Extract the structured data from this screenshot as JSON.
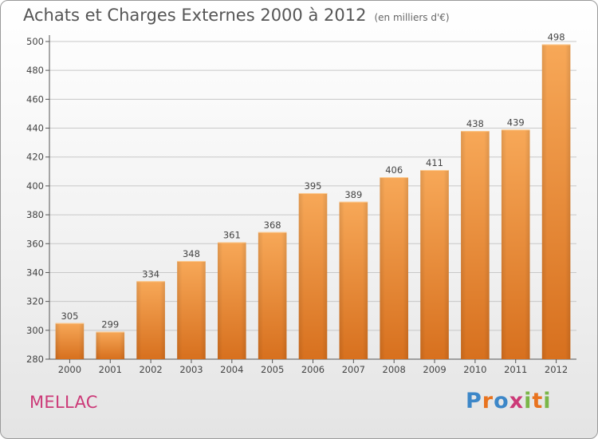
{
  "header": {
    "title": "Achats et Charges Externes 2000 à 2012",
    "unit": "(en milliers d'€)"
  },
  "footer": {
    "commune": "MELLAC",
    "brand": [
      "P",
      "r",
      "o",
      "x",
      "i",
      "t",
      "i"
    ]
  },
  "colors": {
    "bar_top": "#f7a858",
    "bar_bottom": "#d7701e",
    "brand_letters": [
      "#3d87c8",
      "#e8731f",
      "#3d87c8",
      "#cc3a78",
      "#7ab648",
      "#e8731f",
      "#7ab648"
    ]
  },
  "chart_data": {
    "type": "bar",
    "title": "Achats et Charges Externes 2000 à 2012",
    "subtitle": "(en milliers d'€)",
    "categories": [
      "2000",
      "2001",
      "2002",
      "2003",
      "2004",
      "2005",
      "2006",
      "2007",
      "2008",
      "2009",
      "2010",
      "2011",
      "2012"
    ],
    "values": [
      305,
      299,
      334,
      348,
      361,
      368,
      395,
      389,
      406,
      411,
      438,
      439,
      498
    ],
    "ylim": [
      280,
      500
    ],
    "yticks": [
      280,
      300,
      320,
      340,
      360,
      380,
      400,
      420,
      440,
      460,
      480,
      500
    ],
    "grid": true,
    "legend": "none"
  }
}
